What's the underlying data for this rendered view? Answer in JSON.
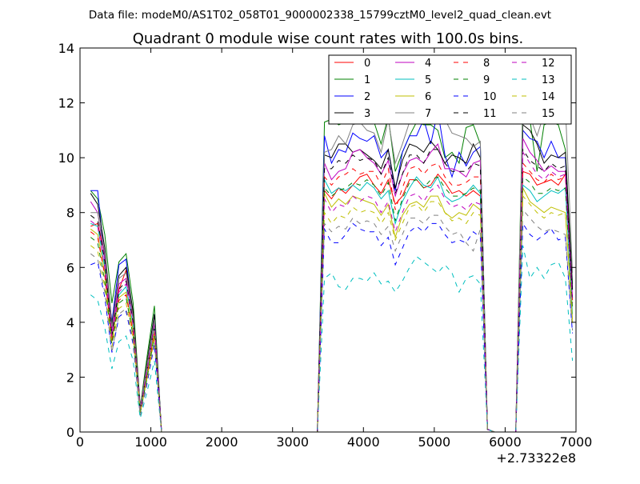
{
  "suptitle": "Data file: modeM0/AS1T02_058T01_9000002338_15799cztM0_level2_quad_clean.evt",
  "chart_data": {
    "type": "line",
    "title": "Quadrant 0 module wise count rates with 100.0s bins.",
    "xlabel": "",
    "ylabel": "",
    "x_offset_label": "+2.73322e8",
    "xlim": [
      0,
      7000
    ],
    "ylim": [
      0,
      14
    ],
    "x_ticks": [
      0,
      1000,
      2000,
      3000,
      4000,
      5000,
      6000,
      7000
    ],
    "y_ticks": [
      0,
      2,
      4,
      6,
      8,
      10,
      12,
      14
    ],
    "grid": false,
    "legend_position": "top-right",
    "legend_columns": 4,
    "x": [
      150,
      250,
      350,
      450,
      550,
      650,
      750,
      850,
      950,
      1050,
      1150,
      1250,
      1350,
      1450,
      1550,
      1650,
      1750,
      1850,
      1950,
      2050,
      2150,
      2250,
      2350,
      2450,
      2550,
      2650,
      2750,
      2850,
      2950,
      3050,
      3150,
      3250,
      3350,
      3450,
      3550,
      3650,
      3750,
      3850,
      3950,
      4050,
      4150,
      4250,
      4350,
      4450,
      4550,
      4650,
      4750,
      4850,
      4950,
      5050,
      5150,
      5250,
      5350,
      5450,
      5550,
      5650,
      5750,
      5850,
      5950,
      6050,
      6150,
      6250,
      6350,
      6450,
      6550,
      6650,
      6750,
      6850,
      6950
    ],
    "series": [
      {
        "name": "0",
        "color": "#ff0000",
        "dash": "solid",
        "values": [
          7.5,
          7.6,
          6.4,
          3.8,
          5.2,
          5.9,
          4.3,
          0.9,
          2.4,
          4.2,
          0,
          0,
          0,
          0,
          0,
          0,
          0,
          0,
          0,
          0,
          0,
          0,
          0,
          0,
          0,
          0,
          0,
          0,
          0,
          0,
          0,
          0,
          0,
          8.8,
          8.5,
          8.9,
          8.7,
          9.0,
          9.3,
          9.4,
          9.0,
          8.7,
          9.2,
          8.3,
          8.6,
          9.2,
          9.2,
          8.9,
          9.0,
          9.4,
          9.1,
          8.7,
          8.8,
          8.6,
          8.8,
          8.6,
          0.1,
          0,
          0,
          0,
          0,
          9.5,
          9.4,
          9.0,
          9.1,
          9.2,
          9.0,
          9.4,
          4.8
        ]
      },
      {
        "name": "1",
        "color": "#008000",
        "dash": "solid",
        "values": [
          8.8,
          8.5,
          7.2,
          4.7,
          6.2,
          6.5,
          4.7,
          0.9,
          2.8,
          4.6,
          0,
          0,
          0,
          0,
          0,
          0,
          0,
          0,
          0,
          0,
          0,
          0,
          0,
          0,
          0,
          0,
          0,
          0,
          0,
          0,
          0,
          0,
          0,
          11.3,
          11.4,
          11.2,
          11.3,
          11.3,
          11.5,
          11.3,
          11.3,
          10.5,
          11.5,
          9.5,
          10.2,
          10.8,
          11.3,
          11.2,
          11.2,
          11.0,
          10.0,
          10.2,
          9.8,
          11.1,
          11.2,
          10.5,
          0.1,
          0,
          0,
          0,
          0,
          12.2,
          11.4,
          9.5,
          11.2,
          11.3,
          11.2,
          10.3,
          5.4
        ]
      },
      {
        "name": "2",
        "color": "#0000ff",
        "dash": "solid",
        "values": [
          8.8,
          8.8,
          6.2,
          4.0,
          6.1,
          6.3,
          4.1,
          0.8,
          2.5,
          4.3,
          0,
          0,
          0,
          0,
          0,
          0,
          0,
          0,
          0,
          0,
          0,
          0,
          0,
          0,
          0,
          0,
          0,
          0,
          0,
          0,
          0,
          0,
          0,
          10.8,
          9.8,
          10.3,
          10.2,
          10.9,
          10.7,
          10.6,
          10.8,
          10.0,
          10.3,
          8.8,
          10.2,
          10.8,
          10.8,
          11.4,
          10.5,
          11.7,
          10.1,
          9.3,
          10.2,
          9.7,
          10.2,
          10.4,
          0.1,
          0,
          0,
          0,
          0,
          11.0,
          10.7,
          10.6,
          10.0,
          10.6,
          10.0,
          10.0,
          5.2
        ]
      },
      {
        "name": "3",
        "color": "#000000",
        "dash": "solid",
        "values": [
          8.7,
          8.3,
          6.7,
          3.9,
          5.7,
          6.0,
          4.4,
          0.9,
          2.6,
          4.3,
          0,
          0,
          0,
          0,
          0,
          0,
          0,
          0,
          0,
          0,
          0,
          0,
          0,
          0,
          0,
          0,
          0,
          0,
          0,
          0,
          0,
          0,
          0,
          10.1,
          10.0,
          10.5,
          10.5,
          10.2,
          10.3,
          10.1,
          9.9,
          9.6,
          10.3,
          8.9,
          9.9,
          10.5,
          10.4,
          10.2,
          10.6,
          10.3,
          9.8,
          10.1,
          10.0,
          9.8,
          10.5,
          10.0,
          0.1,
          0,
          0,
          0,
          0,
          11.2,
          11.0,
          10.5,
          9.8,
          10.1,
          10.0,
          10.2,
          5.2
        ]
      },
      {
        "name": "4",
        "color": "#bf00bf",
        "dash": "solid",
        "values": [
          8.4,
          8.0,
          6.3,
          3.6,
          5.4,
          5.6,
          4.1,
          0.8,
          2.4,
          4.0,
          0,
          0,
          0,
          0,
          0,
          0,
          0,
          0,
          0,
          0,
          0,
          0,
          0,
          0,
          0,
          0,
          0,
          0,
          0,
          0,
          0,
          0,
          0,
          9.8,
          9.2,
          9.5,
          9.6,
          10.2,
          10.3,
          10.0,
          9.8,
          9.4,
          9.9,
          8.6,
          9.4,
          9.9,
          10.0,
          9.8,
          10.2,
          10.5,
          9.6,
          9.6,
          9.5,
          9.3,
          9.8,
          9.9,
          0.1,
          0,
          0,
          0,
          0,
          10.7,
          10.2,
          9.9,
          9.5,
          9.7,
          9.5,
          9.5,
          4.9
        ]
      },
      {
        "name": "5",
        "color": "#00bfbf",
        "dash": "solid",
        "values": [
          7.6,
          7.5,
          6.0,
          3.4,
          5.0,
          5.3,
          3.9,
          0.8,
          2.2,
          3.8,
          0,
          0,
          0,
          0,
          0,
          0,
          0,
          0,
          0,
          0,
          0,
          0,
          0,
          0,
          0,
          0,
          0,
          0,
          0,
          0,
          0,
          0,
          0,
          9.2,
          8.7,
          8.9,
          8.8,
          9.0,
          8.8,
          9.1,
          8.9,
          8.5,
          8.8,
          7.6,
          8.4,
          8.9,
          9.3,
          9.0,
          8.9,
          9.3,
          8.6,
          8.4,
          8.5,
          8.7,
          9.0,
          8.7,
          0.1,
          0,
          0,
          0,
          0,
          9.0,
          8.8,
          8.4,
          8.6,
          8.8,
          8.7,
          8.9,
          4.3
        ]
      },
      {
        "name": "6",
        "color": "#bfbf00",
        "dash": "solid",
        "values": [
          7.4,
          7.2,
          5.8,
          3.3,
          4.9,
          5.1,
          3.7,
          0.7,
          2.1,
          3.7,
          0,
          0,
          0,
          0,
          0,
          0,
          0,
          0,
          0,
          0,
          0,
          0,
          0,
          0,
          0,
          0,
          0,
          0,
          0,
          0,
          0,
          0,
          0,
          8.7,
          8.2,
          8.5,
          8.3,
          8.6,
          8.5,
          8.4,
          8.3,
          7.9,
          8.3,
          7.1,
          7.9,
          8.3,
          8.4,
          8.2,
          8.6,
          8.6,
          8.0,
          7.8,
          8.0,
          7.9,
          8.3,
          8.1,
          0.1,
          0,
          0,
          0,
          0,
          8.9,
          8.4,
          8.2,
          8.0,
          8.2,
          8.1,
          8.0,
          4.1
        ]
      },
      {
        "name": "7",
        "color": "#808080",
        "dash": "solid",
        "values": [
          8.0,
          8.0,
          6.5,
          3.8,
          5.6,
          5.8,
          4.2,
          0.9,
          2.5,
          4.1,
          0,
          0,
          0,
          0,
          0,
          0,
          0,
          0,
          0,
          0,
          0,
          0,
          0,
          0,
          0,
          0,
          0,
          0,
          0,
          0,
          0,
          0,
          0,
          10.2,
          10.3,
          10.8,
          10.5,
          11.2,
          11.3,
          11.0,
          10.9,
          10.2,
          11.4,
          9.8,
          10.5,
          11.3,
          11.6,
          11.5,
          11.7,
          12.3,
          11.4,
          10.9,
          10.8,
          10.7,
          10.4,
          10.6,
          0.1,
          0,
          0,
          0,
          0,
          11.8,
          11.5,
          10.8,
          11.6,
          11.7,
          11.5,
          11.9,
          5.8
        ]
      },
      {
        "name": "8",
        "color": "#ff0000",
        "dash": "dashed",
        "values": [
          7.3,
          7.1,
          5.7,
          3.3,
          4.8,
          5.0,
          3.6,
          0.7,
          2.1,
          3.6,
          0,
          0,
          0,
          0,
          0,
          0,
          0,
          0,
          0,
          0,
          0,
          0,
          0,
          0,
          0,
          0,
          0,
          0,
          0,
          0,
          0,
          0,
          0,
          9.3,
          9.0,
          9.3,
          9.4,
          9.6,
          9.4,
          9.5,
          9.5,
          9.0,
          9.6,
          8.1,
          8.9,
          9.6,
          9.7,
          9.4,
          9.7,
          9.8,
          9.3,
          9.0,
          9.0,
          9.1,
          9.3,
          9.3,
          0.1,
          0,
          0,
          0,
          0,
          9.8,
          9.5,
          9.2,
          9.1,
          9.4,
          9.2,
          9.3,
          4.7
        ]
      },
      {
        "name": "9",
        "color": "#008000",
        "dash": "dashed",
        "values": [
          7.1,
          6.9,
          5.5,
          3.2,
          4.7,
          4.9,
          3.5,
          0.7,
          2.0,
          3.5,
          0,
          0,
          0,
          0,
          0,
          0,
          0,
          0,
          0,
          0,
          0,
          0,
          0,
          0,
          0,
          0,
          0,
          0,
          0,
          0,
          0,
          0,
          0,
          8.9,
          8.6,
          8.8,
          8.9,
          9.1,
          9.0,
          9.2,
          9.0,
          8.6,
          9.1,
          7.7,
          8.5,
          9.1,
          9.2,
          8.9,
          9.2,
          9.3,
          8.9,
          8.6,
          8.6,
          8.7,
          8.9,
          8.8,
          0.1,
          0,
          0,
          0,
          0,
          9.3,
          9.1,
          8.7,
          8.7,
          8.9,
          8.8,
          8.9,
          4.5
        ]
      },
      {
        "name": "10",
        "color": "#0000ff",
        "dash": "dashed",
        "values": [
          6.1,
          6.2,
          4.9,
          2.9,
          4.2,
          4.4,
          3.2,
          0.6,
          1.8,
          3.2,
          0,
          0,
          0,
          0,
          0,
          0,
          0,
          0,
          0,
          0,
          0,
          0,
          0,
          0,
          0,
          0,
          0,
          0,
          0,
          0,
          0,
          0,
          0,
          7.4,
          6.9,
          6.9,
          7.2,
          7.6,
          7.4,
          7.3,
          7.3,
          6.8,
          7.1,
          6.1,
          6.7,
          7.3,
          7.5,
          7.3,
          7.6,
          7.6,
          7.2,
          6.9,
          7.0,
          6.9,
          7.3,
          7.1,
          0.1,
          0,
          0,
          0,
          0,
          7.6,
          7.2,
          7.0,
          7.2,
          7.4,
          7.0,
          7.1,
          3.6
        ]
      },
      {
        "name": "11",
        "color": "#000000",
        "dash": "dashed",
        "values": [
          7.9,
          7.7,
          6.2,
          3.5,
          5.2,
          5.5,
          4.0,
          0.8,
          2.3,
          3.9,
          0,
          0,
          0,
          0,
          0,
          0,
          0,
          0,
          0,
          0,
          0,
          0,
          0,
          0,
          0,
          0,
          0,
          0,
          0,
          0,
          0,
          0,
          0,
          9.6,
          9.6,
          9.9,
          9.8,
          10.1,
          9.9,
          10.0,
          9.9,
          9.4,
          10.0,
          8.7,
          9.4,
          10.1,
          10.1,
          9.8,
          10.3,
          10.3,
          9.8,
          9.5,
          9.5,
          9.5,
          9.8,
          9.7,
          0.1,
          0,
          0,
          0,
          0,
          10.3,
          9.9,
          9.7,
          9.5,
          9.8,
          9.6,
          9.7,
          4.9
        ]
      },
      {
        "name": "12",
        "color": "#bf00bf",
        "dash": "dashed",
        "values": [
          7.7,
          7.5,
          6.0,
          3.5,
          5.1,
          5.4,
          3.9,
          0.8,
          2.3,
          3.9,
          0,
          0,
          0,
          0,
          0,
          0,
          0,
          0,
          0,
          0,
          0,
          0,
          0,
          0,
          0,
          0,
          0,
          0,
          0,
          0,
          0,
          0,
          0,
          8.5,
          8.0,
          8.3,
          8.2,
          8.6,
          8.4,
          8.6,
          8.5,
          8.0,
          8.4,
          7.3,
          8.0,
          8.6,
          8.7,
          8.4,
          8.8,
          9.0,
          8.5,
          8.2,
          8.3,
          8.1,
          8.4,
          8.3,
          0.1,
          0,
          0,
          0,
          0,
          10.2,
          9.8,
          9.4,
          9.2,
          9.5,
          9.3,
          9.4,
          4.7
        ]
      },
      {
        "name": "13",
        "color": "#00bfbf",
        "dash": "dashed",
        "values": [
          5.0,
          4.8,
          3.8,
          2.3,
          3.3,
          3.5,
          2.6,
          0.5,
          1.5,
          2.6,
          0,
          0,
          0,
          0,
          0,
          0,
          0,
          0,
          0,
          0,
          0,
          0,
          0,
          0,
          0,
          0,
          0,
          0,
          0,
          0,
          0,
          0,
          0,
          5.6,
          5.8,
          5.3,
          5.2,
          5.6,
          5.6,
          5.5,
          5.8,
          5.4,
          5.5,
          5.1,
          5.5,
          6.0,
          6.4,
          6.2,
          6.0,
          5.8,
          6.1,
          5.8,
          5.1,
          5.6,
          5.7,
          5.4,
          0.1,
          0,
          0,
          0,
          0,
          6.8,
          5.6,
          6.0,
          5.6,
          6.1,
          6.2,
          5.6,
          2.6
        ]
      },
      {
        "name": "14",
        "color": "#bfbf00",
        "dash": "dashed",
        "values": [
          6.8,
          6.6,
          5.3,
          3.1,
          4.5,
          4.7,
          3.4,
          0.7,
          2.0,
          3.4,
          0,
          0,
          0,
          0,
          0,
          0,
          0,
          0,
          0,
          0,
          0,
          0,
          0,
          0,
          0,
          0,
          0,
          0,
          0,
          0,
          0,
          0,
          0,
          8.0,
          7.6,
          7.9,
          7.8,
          8.2,
          8.0,
          8.1,
          8.0,
          7.6,
          8.0,
          7.0,
          7.6,
          8.2,
          8.3,
          8.0,
          8.4,
          8.4,
          8.0,
          7.7,
          7.8,
          7.6,
          8.0,
          7.9,
          0.1,
          0,
          0,
          0,
          0,
          8.6,
          8.3,
          8.0,
          7.8,
          8.0,
          7.9,
          8.0,
          4.0
        ]
      },
      {
        "name": "15",
        "color": "#808080",
        "dash": "dashed",
        "values": [
          6.5,
          6.3,
          5.1,
          2.9,
          4.3,
          4.5,
          3.3,
          0.6,
          1.9,
          3.3,
          0,
          0,
          0,
          0,
          0,
          0,
          0,
          0,
          0,
          0,
          0,
          0,
          0,
          0,
          0,
          0,
          0,
          0,
          0,
          0,
          0,
          0,
          0,
          7.6,
          7.3,
          7.5,
          7.4,
          7.8,
          7.6,
          7.7,
          7.6,
          7.2,
          7.5,
          6.6,
          7.2,
          7.8,
          7.8,
          7.6,
          7.9,
          7.9,
          7.5,
          7.2,
          7.3,
          6.9,
          6.6,
          7.4,
          0.1,
          0,
          0,
          0,
          0,
          8.1,
          7.8,
          7.5,
          7.3,
          7.4,
          7.3,
          7.2,
          3.7
        ]
      }
    ]
  }
}
